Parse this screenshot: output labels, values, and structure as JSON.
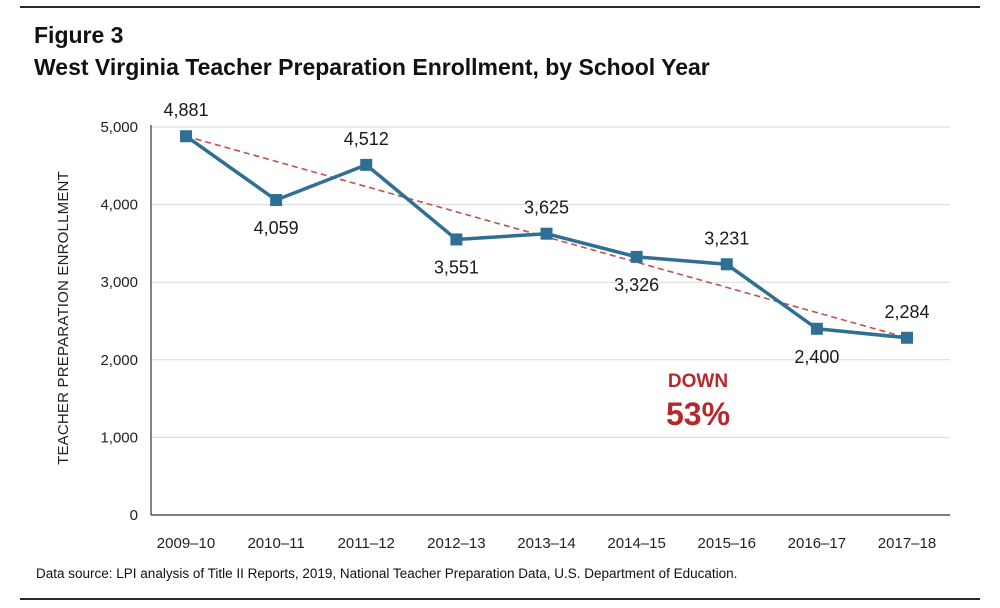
{
  "header": {
    "figure_label": "Figure 3",
    "title": "West Virginia Teacher Preparation Enrollment, by School Year"
  },
  "footer": {
    "source": "Data source: LPI analysis of Title II Reports, 2019, National Teacher Preparation Data, U.S. Department of Education."
  },
  "colors": {
    "series": "#2f6f94",
    "trend": "#c0504d",
    "annotation": "#b5282d",
    "grid": "#d9d9d9"
  },
  "chart_data": {
    "type": "line",
    "title": "West Virginia Teacher Preparation Enrollment, by School Year",
    "xlabel": "",
    "ylabel": "TEACHER PREPARATION ENROLLMENT",
    "categories": [
      "2009–10",
      "2010–11",
      "2011–12",
      "2012–13",
      "2013–14",
      "2014–15",
      "2015–16",
      "2016–17",
      "2017–18"
    ],
    "series": [
      {
        "values": [
          4881,
          4059,
          4512,
          3551,
          3625,
          3326,
          3231,
          2400,
          2284
        ],
        "labels": [
          "4,881",
          "4,059",
          "4,512",
          "3,551",
          "3,625",
          "3,326",
          "3,231",
          "2,400",
          "2,284"
        ],
        "label_positions": [
          "above",
          "below",
          "above",
          "below",
          "above",
          "below",
          "above",
          "below",
          "above"
        ],
        "marker": "square"
      }
    ],
    "trendline": {
      "style": "dashed",
      "start": 4881,
      "end": 2284
    },
    "ylim": [
      0,
      5000
    ],
    "yticks": [
      0,
      1000,
      2000,
      3000,
      4000,
      5000
    ],
    "ytick_labels": [
      "0",
      "1,000",
      "2,000",
      "3,000",
      "4,000",
      "5,000"
    ],
    "grid": true,
    "annotation": {
      "line1": "DOWN",
      "line2": "53%"
    }
  }
}
